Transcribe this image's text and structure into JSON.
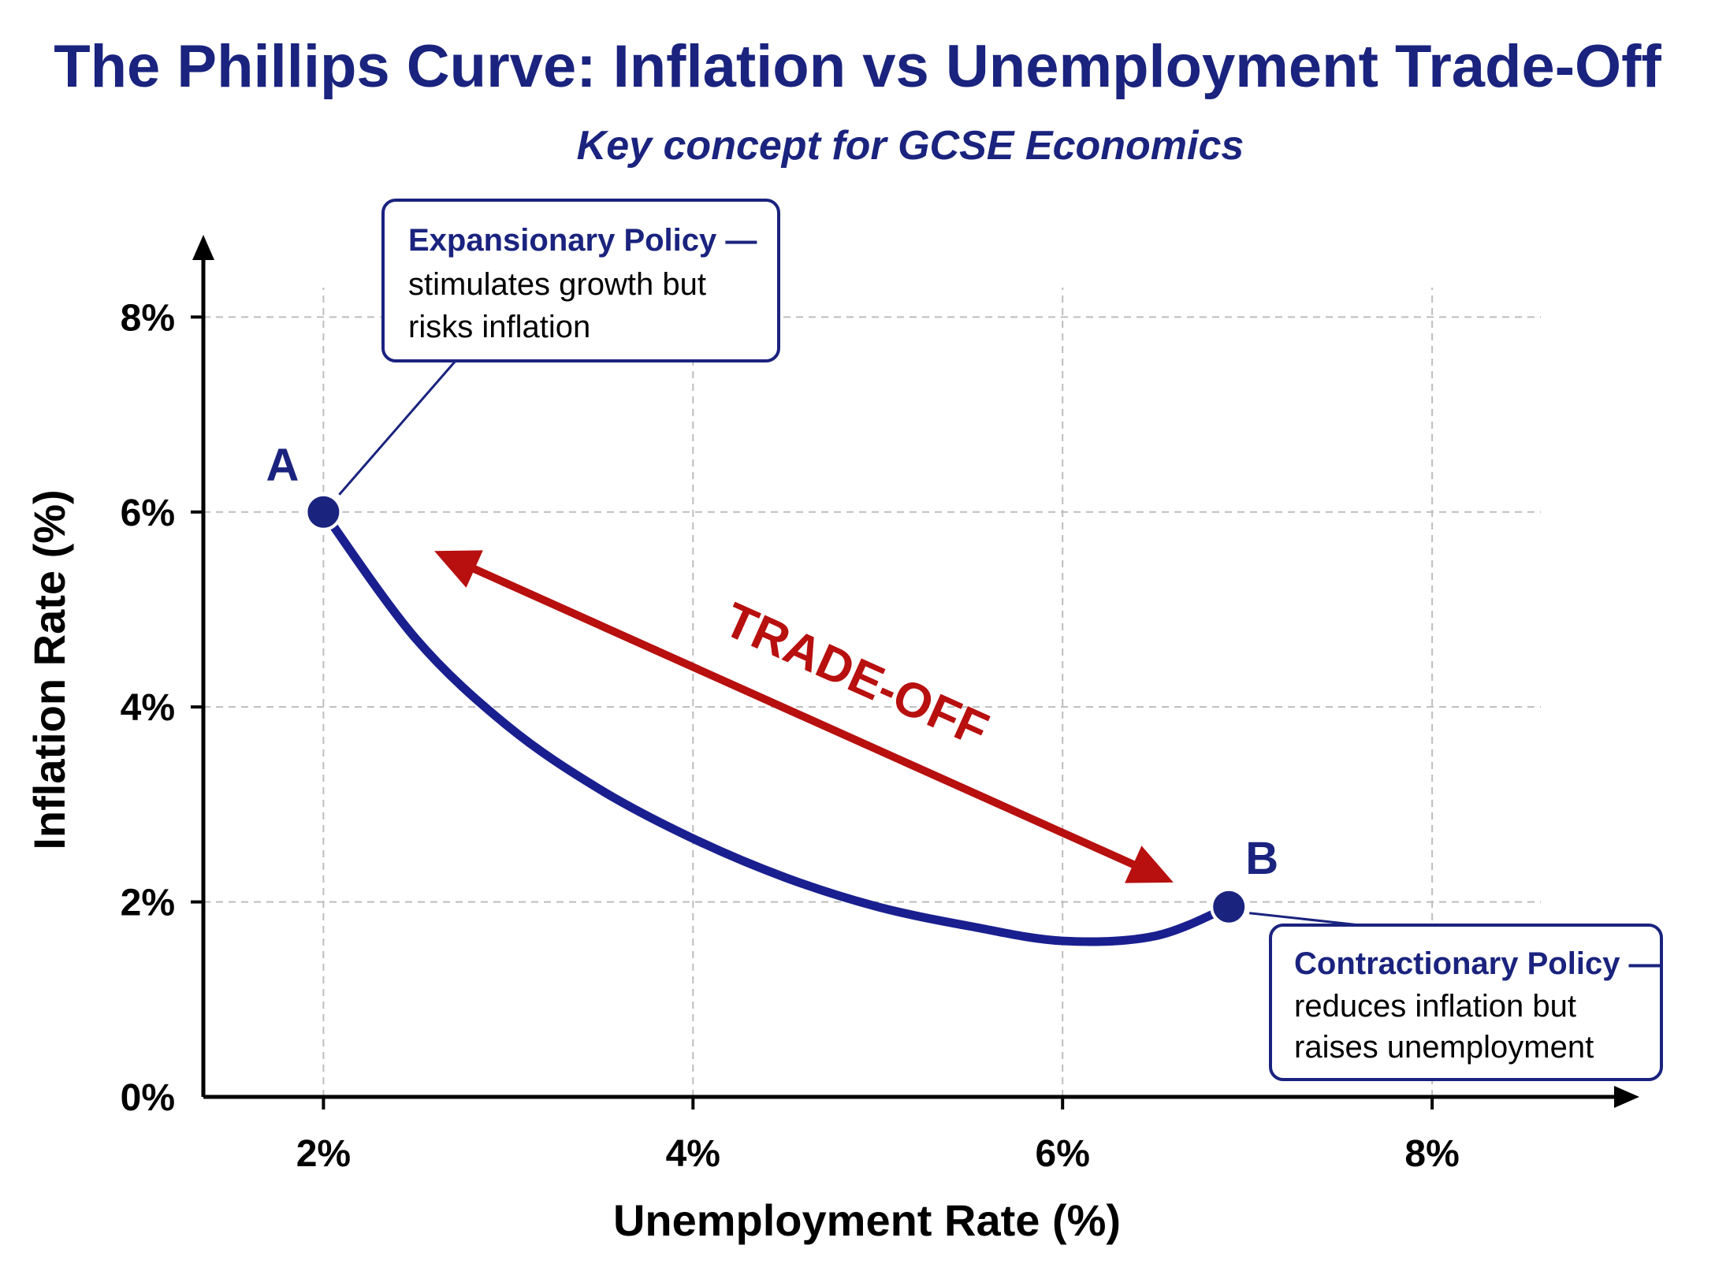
{
  "colors": {
    "navy": "#1a237e",
    "curve": "#1a1f8f",
    "red": "#b80f0f",
    "grid": "#bdbdbd",
    "axis": "#000000",
    "text": "#000000"
  },
  "chart_data": {
    "type": "line",
    "title": "The Phillips Curve: Inflation vs Unemployment Trade-Off",
    "subtitle": "Key concept for GCSE Economics",
    "xlabel": "Unemployment Rate (%)",
    "ylabel": "Inflation Rate (%)",
    "xlim": [
      1.35,
      9.1
    ],
    "ylim": [
      0,
      8.9
    ],
    "x_ticks": [
      2,
      4,
      6,
      8
    ],
    "x_tick_labels": [
      "2%",
      "4%",
      "6%",
      "8%"
    ],
    "y_ticks": [
      0,
      2,
      4,
      6,
      8
    ],
    "y_tick_labels": [
      "0%",
      "2%",
      "4%",
      "6%",
      "8%"
    ],
    "grid": true,
    "series": [
      {
        "x": [
          2.0,
          2.5,
          3.0,
          3.5,
          4.0,
          4.5,
          5.0,
          5.5,
          6.0,
          6.5,
          6.9
        ],
        "y": [
          6.0,
          4.7,
          3.8,
          3.15,
          2.65,
          2.25,
          1.95,
          1.75,
          1.6,
          1.65,
          1.95
        ]
      }
    ],
    "points": [
      {
        "label": "A",
        "x": 2.0,
        "y": 6.0
      },
      {
        "label": "B",
        "x": 6.9,
        "y": 1.95
      }
    ],
    "annotations": [
      {
        "heading": "Expansionary Policy —",
        "lines": [
          "stimulates growth but",
          "risks inflation"
        ],
        "attached_to": "A"
      },
      {
        "heading": "Contractionary Policy —",
        "lines": [
          "reduces inflation but",
          "raises unemployment"
        ],
        "attached_to": "B"
      }
    ],
    "arrow": {
      "label": "TRADE-OFF",
      "from": [
        6.6,
        2.2
      ],
      "to": [
        2.6,
        5.6
      ],
      "double_headed": true
    }
  }
}
